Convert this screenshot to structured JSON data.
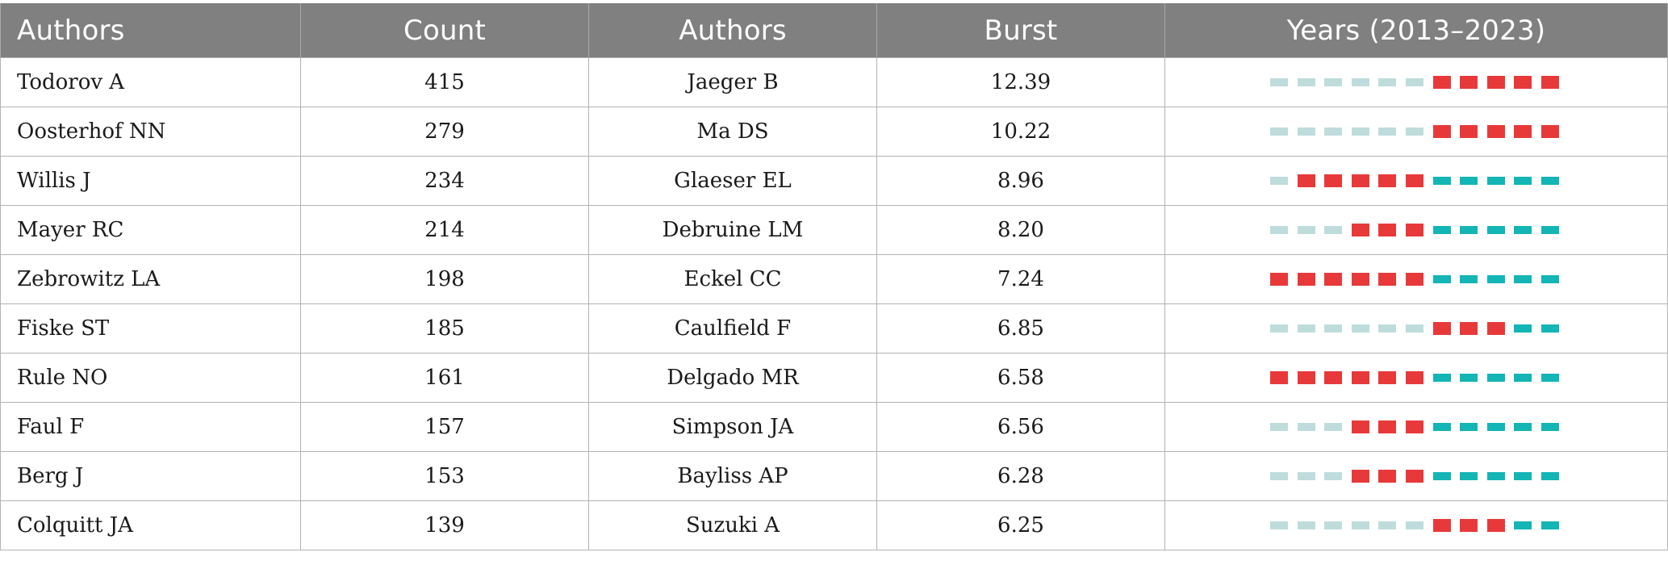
{
  "table": {
    "headers": [
      "Authors",
      "Count",
      "Authors",
      "Burst",
      "Years (2013–2023)"
    ],
    "colors": {
      "header_bg": "#7f807f",
      "light": "#bfdcdc",
      "burst": "#e8393a",
      "teal": "#13b5b5"
    },
    "rows": [
      {
        "author_count": "Todorov A",
        "count": "415",
        "author_burst": "Jaeger B",
        "burst": "12.39",
        "years": [
          "light",
          "light",
          "light",
          "light",
          "light",
          "light",
          "burst",
          "burst",
          "burst",
          "burst",
          "burst"
        ]
      },
      {
        "author_count": "Oosterhof NN",
        "count": "279",
        "author_burst": "Ma DS",
        "burst": "10.22",
        "years": [
          "light",
          "light",
          "light",
          "light",
          "light",
          "light",
          "burst",
          "burst",
          "burst",
          "burst",
          "burst"
        ]
      },
      {
        "author_count": "Willis J",
        "count": "234",
        "author_burst": "Glaeser EL",
        "burst": "8.96",
        "years": [
          "light",
          "burst",
          "burst",
          "burst",
          "burst",
          "burst",
          "teal",
          "teal",
          "teal",
          "teal",
          "teal"
        ]
      },
      {
        "author_count": "Mayer RC",
        "count": "214",
        "author_burst": "Debruine LM",
        "burst": "8.20",
        "years": [
          "light",
          "light",
          "light",
          "burst",
          "burst",
          "burst",
          "teal",
          "teal",
          "teal",
          "teal",
          "teal"
        ]
      },
      {
        "author_count": "Zebrowitz LA",
        "count": "198",
        "author_burst": "Eckel CC",
        "burst": "7.24",
        "years": [
          "burst",
          "burst",
          "burst",
          "burst",
          "burst",
          "burst",
          "teal",
          "teal",
          "teal",
          "teal",
          "teal"
        ]
      },
      {
        "author_count": "Fiske ST",
        "count": "185",
        "author_burst": "Caulfield F",
        "burst": "6.85",
        "years": [
          "light",
          "light",
          "light",
          "light",
          "light",
          "light",
          "burst",
          "burst",
          "burst",
          "teal",
          "teal"
        ]
      },
      {
        "author_count": "Rule NO",
        "count": "161",
        "author_burst": "Delgado MR",
        "burst": "6.58",
        "years": [
          "burst",
          "burst",
          "burst",
          "burst",
          "burst",
          "burst",
          "teal",
          "teal",
          "teal",
          "teal",
          "teal"
        ]
      },
      {
        "author_count": "Faul F",
        "count": "157",
        "author_burst": "Simpson JA",
        "burst": "6.56",
        "years": [
          "light",
          "light",
          "light",
          "burst",
          "burst",
          "burst",
          "teal",
          "teal",
          "teal",
          "teal",
          "teal"
        ]
      },
      {
        "author_count": "Berg J",
        "count": "153",
        "author_burst": "Bayliss AP",
        "burst": "6.28",
        "years": [
          "light",
          "light",
          "light",
          "burst",
          "burst",
          "burst",
          "teal",
          "teal",
          "teal",
          "teal",
          "teal"
        ]
      },
      {
        "author_count": "Colquitt JA",
        "count": "139",
        "author_burst": "Suzuki A",
        "burst": "6.25",
        "years": [
          "light",
          "light",
          "light",
          "light",
          "light",
          "light",
          "burst",
          "burst",
          "burst",
          "teal",
          "teal"
        ]
      }
    ]
  }
}
